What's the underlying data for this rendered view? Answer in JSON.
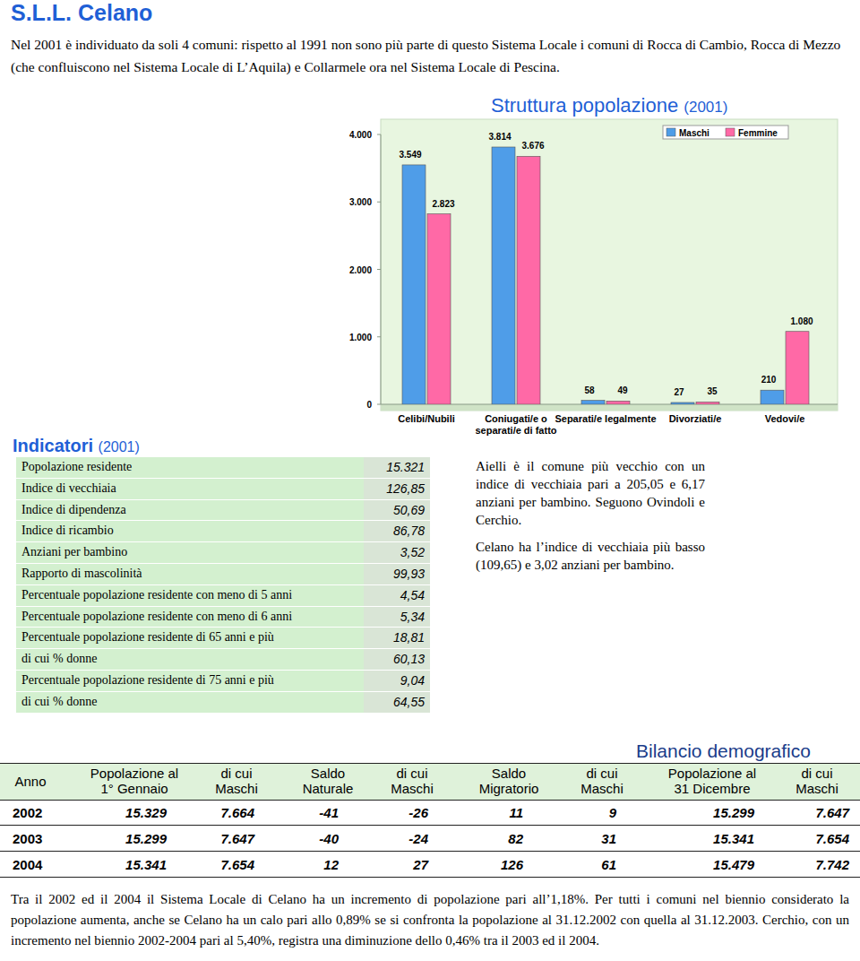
{
  "header": {
    "title": "S.L.L. Celano",
    "intro": "Nel 2001 è individuato da soli 4 comuni: rispetto al 1991 non sono più parte di questo Sistema Locale i comuni di Rocca di Cambio, Rocca di Mezzo (che confluiscono nel Sistema Locale di L’Aquila) e Collarmele ora nel Sistema Locale di Pescina."
  },
  "chart_data": {
    "type": "bar",
    "title": "Struttura popolazione",
    "subtitle": "(2001)",
    "categories": [
      "Celibi/Nubili",
      "Coniugati/e o separati/e di fatto",
      "Separati/e legalmente",
      "Divorziati/e",
      "Vedovi/e"
    ],
    "series": [
      {
        "name": "Maschi",
        "color": "#4f9de8",
        "values": [
          3549,
          3814,
          58,
          27,
          210
        ],
        "value_labels": [
          "3.549",
          "3.814",
          "58",
          "27",
          "210"
        ]
      },
      {
        "name": "Femmine",
        "color": "#ff69a6",
        "values": [
          2823,
          3676,
          49,
          35,
          1080
        ],
        "value_labels": [
          "2.823",
          "3.676",
          "49",
          "35",
          "1.080"
        ]
      }
    ],
    "ylim": [
      0,
      4000
    ],
    "yticks": [
      0,
      {
        "value": 1000,
        "label": "1.000"
      },
      {
        "value": 2000,
        "label": "2.000"
      },
      {
        "value": 3000,
        "label": "3.000"
      },
      {
        "value": 4000,
        "label": "4.000"
      }
    ],
    "grid": false,
    "legend": "top-right",
    "data_labels": true
  },
  "indicators": {
    "title": "Indicatori",
    "year": "(2001)",
    "rows": [
      [
        "Popolazione residente",
        "15.321"
      ],
      [
        "Indice di vecchiaia",
        "126,85"
      ],
      [
        "Indice di dipendenza",
        "50,69"
      ],
      [
        "Indice di ricambio",
        "86,78"
      ],
      [
        "Anziani per bambino",
        "3,52"
      ],
      [
        "Rapporto di mascolinità",
        "99,93"
      ],
      [
        "Percentuale popolazione residente con meno di 5 anni",
        "4,54"
      ],
      [
        "Percentuale popolazione residente con meno di 6 anni",
        "5,34"
      ],
      [
        "Percentuale popolazione residente di 65 anni e più",
        "18,81"
      ],
      [
        "di cui % donne",
        "60,13"
      ],
      [
        "Percentuale popolazione residente di 75 anni e più",
        "9,04"
      ],
      [
        "di cui % donne",
        "64,55"
      ]
    ]
  },
  "notes": [
    "Aielli è il comune più vecchio con un indice di vecchiaia pari a 205,05 e 6,17 anziani per bambino. Seguono Ovindoli e Cerchio.",
    "Celano ha l’indice di vecchiaia più basso (109,65) e 3,02 anziani per bambino."
  ],
  "bilancio": {
    "title": "Bilancio demografico",
    "headers": [
      [
        "Anno"
      ],
      [
        "Popolazione al",
        "1° Gennaio"
      ],
      [
        "di cui",
        "Maschi"
      ],
      [
        "Saldo",
        "Naturale"
      ],
      [
        "di cui",
        "Maschi"
      ],
      [
        "Saldo",
        "Migratorio"
      ],
      [
        "di cui",
        "Maschi"
      ],
      [
        "Popolazione al",
        "31 Dicembre"
      ],
      [
        "di cui",
        "Maschi"
      ]
    ],
    "rows": [
      [
        "2002",
        "15.329",
        "7.664",
        "-41",
        "-26",
        "11",
        "9",
        "15.299",
        "7.647"
      ],
      [
        "2003",
        "15.299",
        "7.647",
        "-40",
        "-24",
        "82",
        "31",
        "15.341",
        "7.654"
      ],
      [
        "2004",
        "15.341",
        "7.654",
        "12",
        "27",
        "126",
        "61",
        "15.479",
        "7.742"
      ]
    ]
  },
  "footer": "Tra il 2002 ed il 2004 il Sistema Locale di Celano ha un incremento di popolazione pari all’1,18%. Per tutti i comuni nel biennio considerato la popolazione aumenta, anche se Celano ha un calo pari allo 0,89% se si confronta la popolazione al 31.12.2002 con quella al 31.12.2003. Cerchio, con un incremento nel biennio 2002-2004 pari al 5,40%, registra una diminuzione dello 0,46% tra il 2003 ed il 2004."
}
